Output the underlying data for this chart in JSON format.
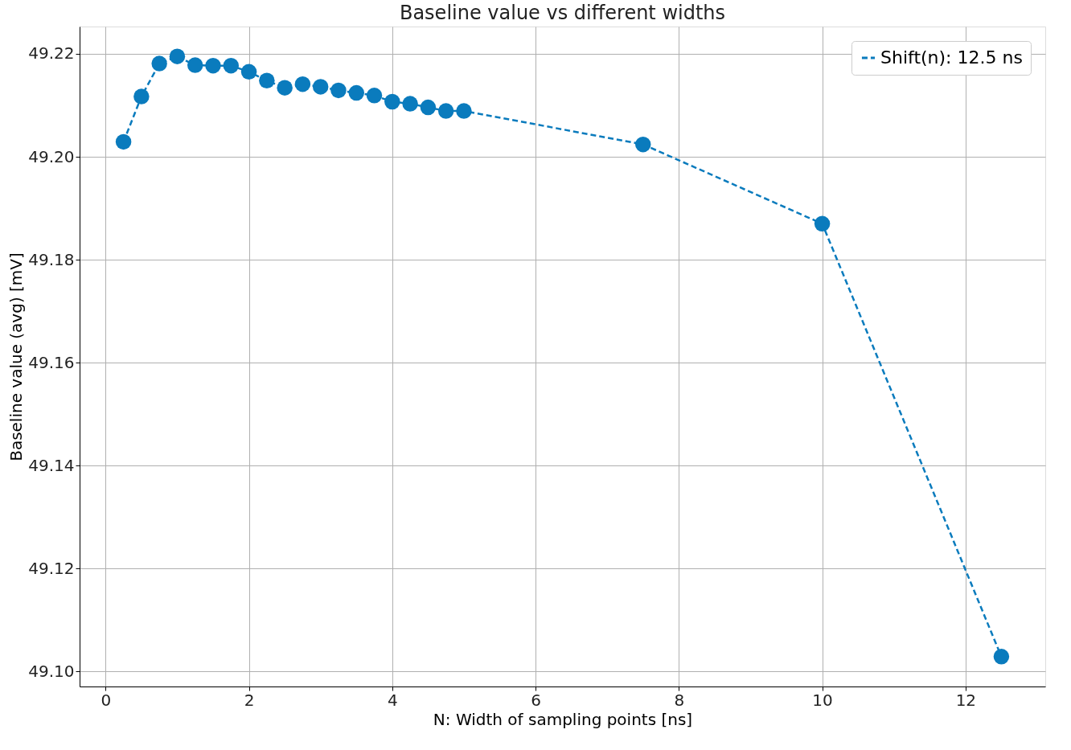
{
  "chart_data": {
    "type": "line",
    "title": "Baseline value vs different widths",
    "xlabel": "N: Width of sampling points [ns]",
    "ylabel": "Baseline value (avg) [mV]",
    "x": [
      0.25,
      0.5,
      0.75,
      1.0,
      1.25,
      1.5,
      1.75,
      2.0,
      2.25,
      2.5,
      2.75,
      3.0,
      3.25,
      3.5,
      3.75,
      4.0,
      4.25,
      4.5,
      4.75,
      5.0,
      7.5,
      10,
      12.5
    ],
    "series": [
      {
        "name": "Shift(n): 12.5 ns",
        "color": "#0a7bbd",
        "values": [
          49.2029,
          49.2117,
          49.2181,
          49.2195,
          49.2178,
          49.2177,
          49.2177,
          49.2165,
          49.2148,
          49.2134,
          49.2141,
          49.2136,
          49.2129,
          49.2124,
          49.2119,
          49.2107,
          49.2103,
          49.2096,
          49.2089,
          49.2089,
          49.2024,
          49.187,
          49.1029
        ]
      }
    ],
    "xlim": [
      -0.3625,
      13.1125
    ],
    "ylim": [
      49.0971,
      49.2253
    ],
    "xticks": [
      0,
      2,
      4,
      6,
      8,
      10,
      12
    ],
    "yticks": [
      {
        "value": 49.1,
        "label": "49.10"
      },
      {
        "value": 49.12,
        "label": "49.12"
      },
      {
        "value": 49.14,
        "label": "49.14"
      },
      {
        "value": 49.16,
        "label": "49.16"
      },
      {
        "value": 49.18,
        "label": "49.18"
      },
      {
        "value": 49.2,
        "label": "49.20"
      },
      {
        "value": 49.22,
        "label": "49.22"
      }
    ],
    "grid": true,
    "legend": "top right",
    "marker": "circle",
    "line_style": "dashed"
  }
}
